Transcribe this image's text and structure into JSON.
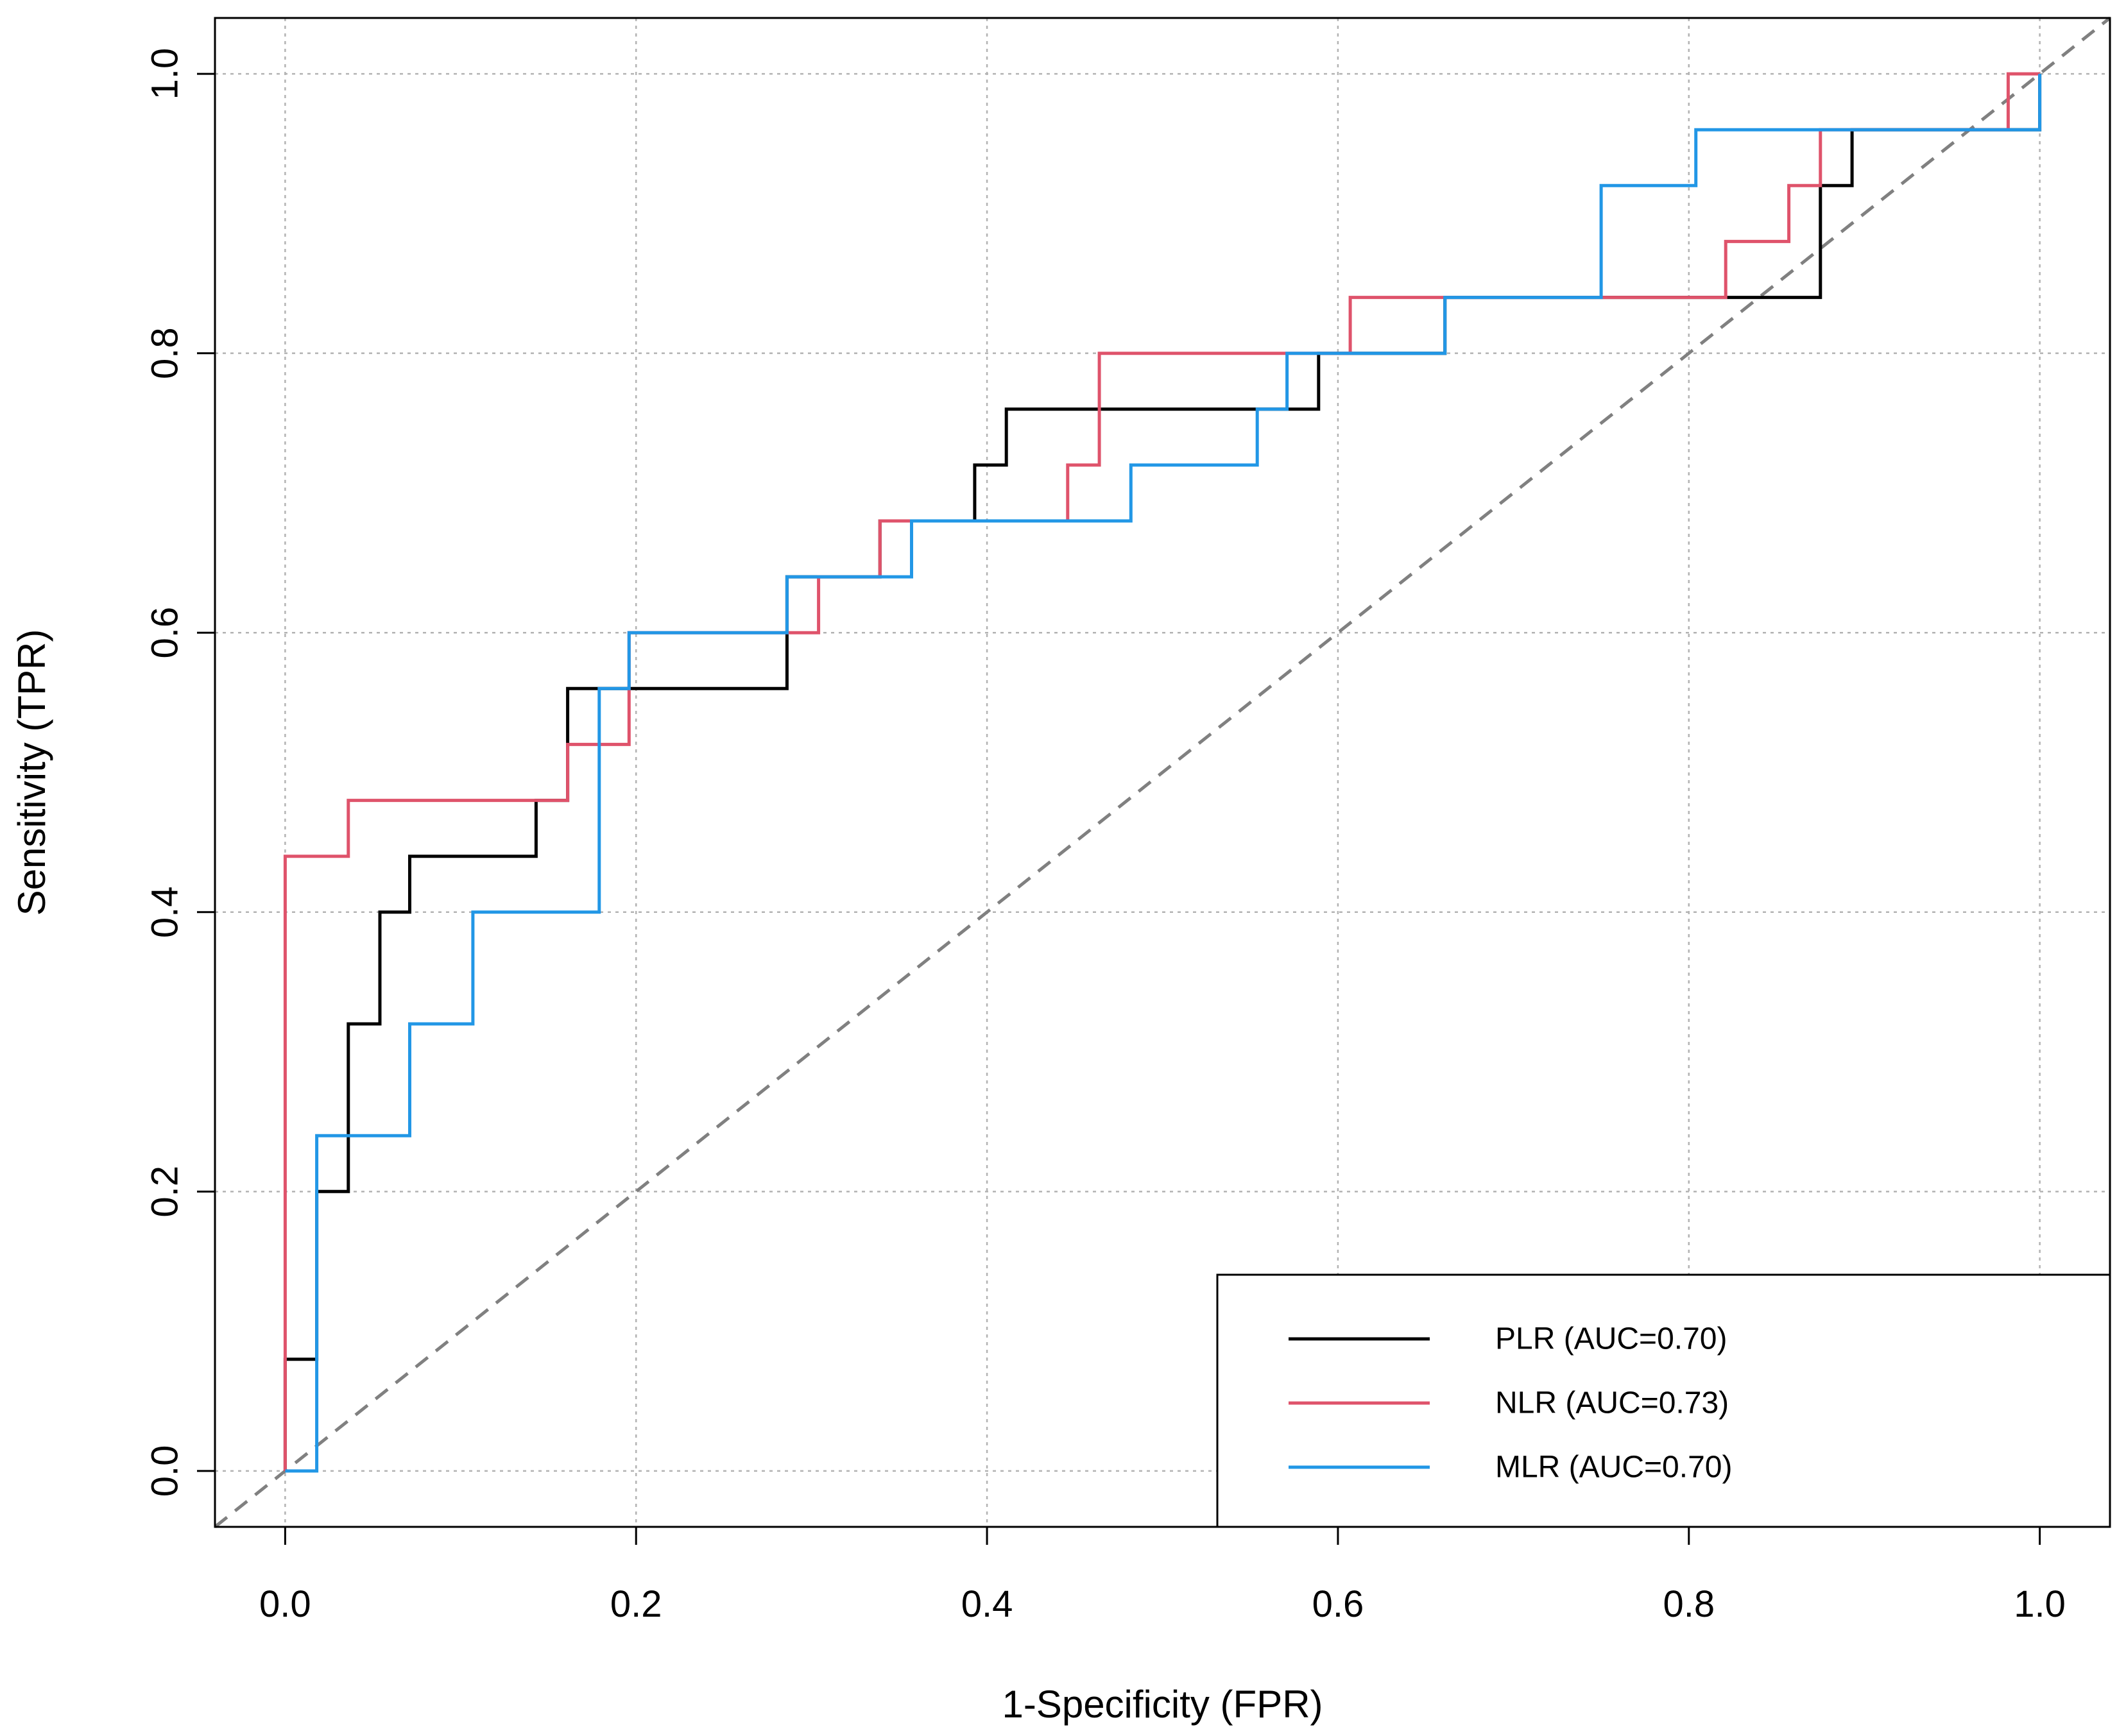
{
  "chart_data": {
    "type": "line",
    "title": "",
    "xlabel": "1-Specificity (FPR)",
    "ylabel": "Sensitivity (TPR)",
    "xlim": [
      -0.04,
      1.04
    ],
    "ylim": [
      -0.04,
      1.04
    ],
    "x_ticks": [
      "0.0",
      "0.2",
      "0.4",
      "0.6",
      "0.8",
      "1.0"
    ],
    "y_ticks": [
      "0.0",
      "0.2",
      "0.4",
      "0.6",
      "0.8",
      "1.0"
    ],
    "grid": true,
    "legend_position": "bottom-right",
    "reference_line": {
      "style": "dashed",
      "color": "#808080",
      "points": [
        [
          0,
          0
        ],
        [
          1,
          1
        ]
      ]
    },
    "series": [
      {
        "name": "PLR (AUC=0.70)",
        "color": "#000000",
        "points": [
          [
            0,
            0
          ],
          [
            0,
            0.08
          ],
          [
            0.018,
            0.08
          ],
          [
            0.018,
            0.2
          ],
          [
            0.036,
            0.2
          ],
          [
            0.036,
            0.32
          ],
          [
            0.054,
            0.32
          ],
          [
            0.054,
            0.4
          ],
          [
            0.071,
            0.4
          ],
          [
            0.071,
            0.44
          ],
          [
            0.143,
            0.44
          ],
          [
            0.143,
            0.48
          ],
          [
            0.161,
            0.48
          ],
          [
            0.161,
            0.56
          ],
          [
            0.286,
            0.56
          ],
          [
            0.286,
            0.64
          ],
          [
            0.339,
            0.64
          ],
          [
            0.339,
            0.68
          ],
          [
            0.393,
            0.68
          ],
          [
            0.393,
            0.72
          ],
          [
            0.411,
            0.72
          ],
          [
            0.411,
            0.76
          ],
          [
            0.589,
            0.76
          ],
          [
            0.589,
            0.8
          ],
          [
            0.661,
            0.8
          ],
          [
            0.661,
            0.84
          ],
          [
            0.875,
            0.84
          ],
          [
            0.875,
            0.92
          ],
          [
            0.893,
            0.92
          ],
          [
            0.893,
            0.96
          ],
          [
            1.0,
            0.96
          ],
          [
            1.0,
            1.0
          ]
        ]
      },
      {
        "name": "NLR (AUC=0.73)",
        "color": "#DF536B",
        "points": [
          [
            0,
            0
          ],
          [
            0,
            0.44
          ],
          [
            0.036,
            0.44
          ],
          [
            0.036,
            0.48
          ],
          [
            0.161,
            0.48
          ],
          [
            0.161,
            0.52
          ],
          [
            0.196,
            0.52
          ],
          [
            0.196,
            0.6
          ],
          [
            0.304,
            0.6
          ],
          [
            0.304,
            0.64
          ],
          [
            0.339,
            0.64
          ],
          [
            0.339,
            0.68
          ],
          [
            0.446,
            0.68
          ],
          [
            0.446,
            0.72
          ],
          [
            0.464,
            0.72
          ],
          [
            0.464,
            0.8
          ],
          [
            0.607,
            0.8
          ],
          [
            0.607,
            0.84
          ],
          [
            0.821,
            0.84
          ],
          [
            0.821,
            0.88
          ],
          [
            0.857,
            0.88
          ],
          [
            0.857,
            0.92
          ],
          [
            0.875,
            0.92
          ],
          [
            0.875,
            0.96
          ],
          [
            0.982,
            0.96
          ],
          [
            0.982,
            1.0
          ],
          [
            1.0,
            1.0
          ]
        ]
      },
      {
        "name": "MLR (AUC=0.70)",
        "color": "#2297E6",
        "points": [
          [
            0,
            0
          ],
          [
            0.018,
            0
          ],
          [
            0.018,
            0.24
          ],
          [
            0.071,
            0.24
          ],
          [
            0.071,
            0.32
          ],
          [
            0.107,
            0.32
          ],
          [
            0.107,
            0.4
          ],
          [
            0.179,
            0.4
          ],
          [
            0.179,
            0.56
          ],
          [
            0.196,
            0.56
          ],
          [
            0.196,
            0.6
          ],
          [
            0.286,
            0.6
          ],
          [
            0.286,
            0.64
          ],
          [
            0.357,
            0.64
          ],
          [
            0.357,
            0.68
          ],
          [
            0.482,
            0.68
          ],
          [
            0.482,
            0.72
          ],
          [
            0.554,
            0.72
          ],
          [
            0.554,
            0.76
          ],
          [
            0.571,
            0.76
          ],
          [
            0.571,
            0.8
          ],
          [
            0.661,
            0.8
          ],
          [
            0.661,
            0.84
          ],
          [
            0.75,
            0.84
          ],
          [
            0.75,
            0.92
          ],
          [
            0.804,
            0.92
          ],
          [
            0.804,
            0.96
          ],
          [
            1.0,
            0.96
          ],
          [
            1.0,
            1.0
          ]
        ]
      }
    ]
  }
}
